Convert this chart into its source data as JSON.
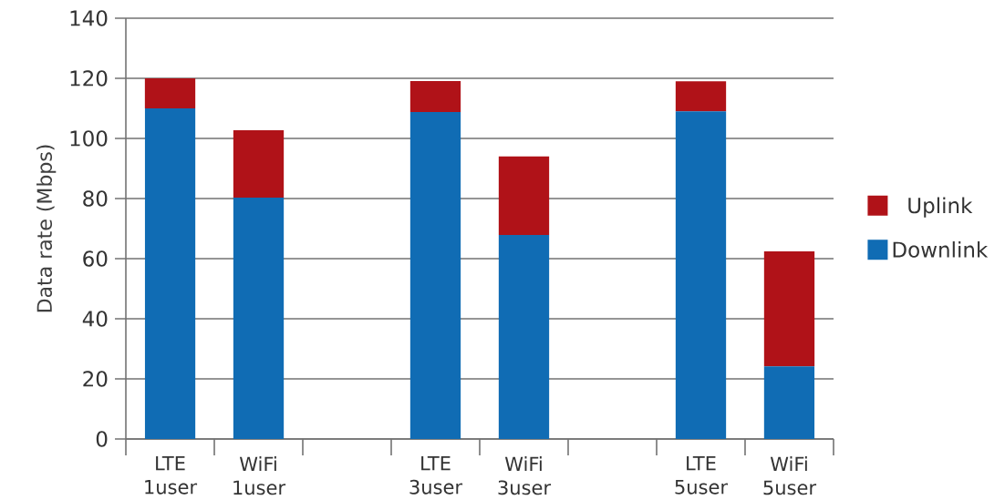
{
  "chart_data": {
    "type": "bar",
    "stacked": true,
    "ylabel": "Data rate (Mbps)",
    "categories": [
      "LTE 1user",
      "WiFi 1user",
      null,
      "LTE 3user",
      "WiFi 3user",
      null,
      "LTE 5user",
      "WiFi 5user"
    ],
    "series": [
      {
        "name": "Downlink",
        "color": "#106cb4",
        "values": [
          110,
          80.3,
          null,
          108.8,
          67.9,
          null,
          109,
          24.2
        ]
      },
      {
        "name": "Uplink",
        "color": "#b01218",
        "values": [
          10,
          22.4,
          null,
          10.3,
          26.1,
          null,
          10,
          38.2
        ]
      }
    ],
    "ylim": [
      0,
      140
    ],
    "yticks": [
      0,
      20,
      40,
      60,
      80,
      100,
      120,
      140
    ],
    "grid": "y",
    "legend": "right"
  }
}
